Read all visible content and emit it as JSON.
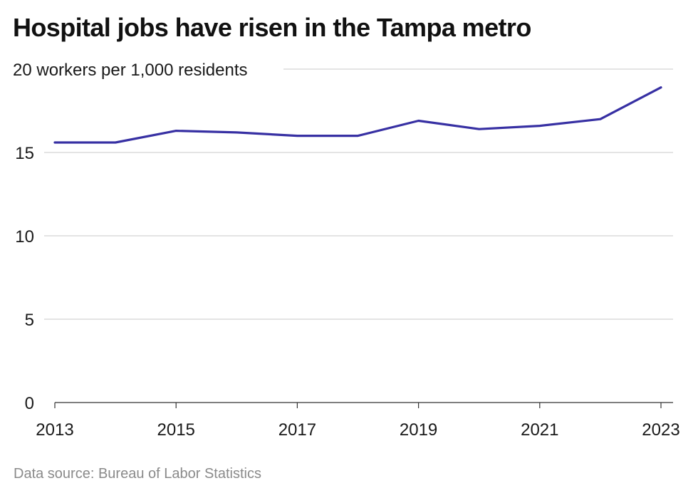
{
  "chart_data": {
    "type": "line",
    "title": "Hospital jobs have risen in the Tampa metro",
    "ylabel": "workers per 1,000 residents",
    "xlabel": "",
    "source": "Data source: Bureau of Labor Statistics",
    "x": [
      2013,
      2014,
      2015,
      2016,
      2017,
      2018,
      2019,
      2020,
      2021,
      2022,
      2023
    ],
    "series": [
      {
        "values": [
          15.6,
          15.6,
          16.3,
          16.2,
          16.0,
          16.0,
          16.9,
          16.4,
          16.6,
          17.0,
          18.9
        ]
      }
    ],
    "xticks": [
      "2013",
      "2015",
      "2017",
      "2019",
      "2021",
      "2023"
    ],
    "yticks": [
      "0",
      "5",
      "10",
      "15",
      "20"
    ],
    "ylim": [
      0,
      20
    ],
    "xlim": [
      2013,
      2023
    ],
    "grid": true,
    "colors": {
      "line": "#3730a3",
      "grid": "#c8c8c8",
      "axis": "#333333"
    }
  }
}
